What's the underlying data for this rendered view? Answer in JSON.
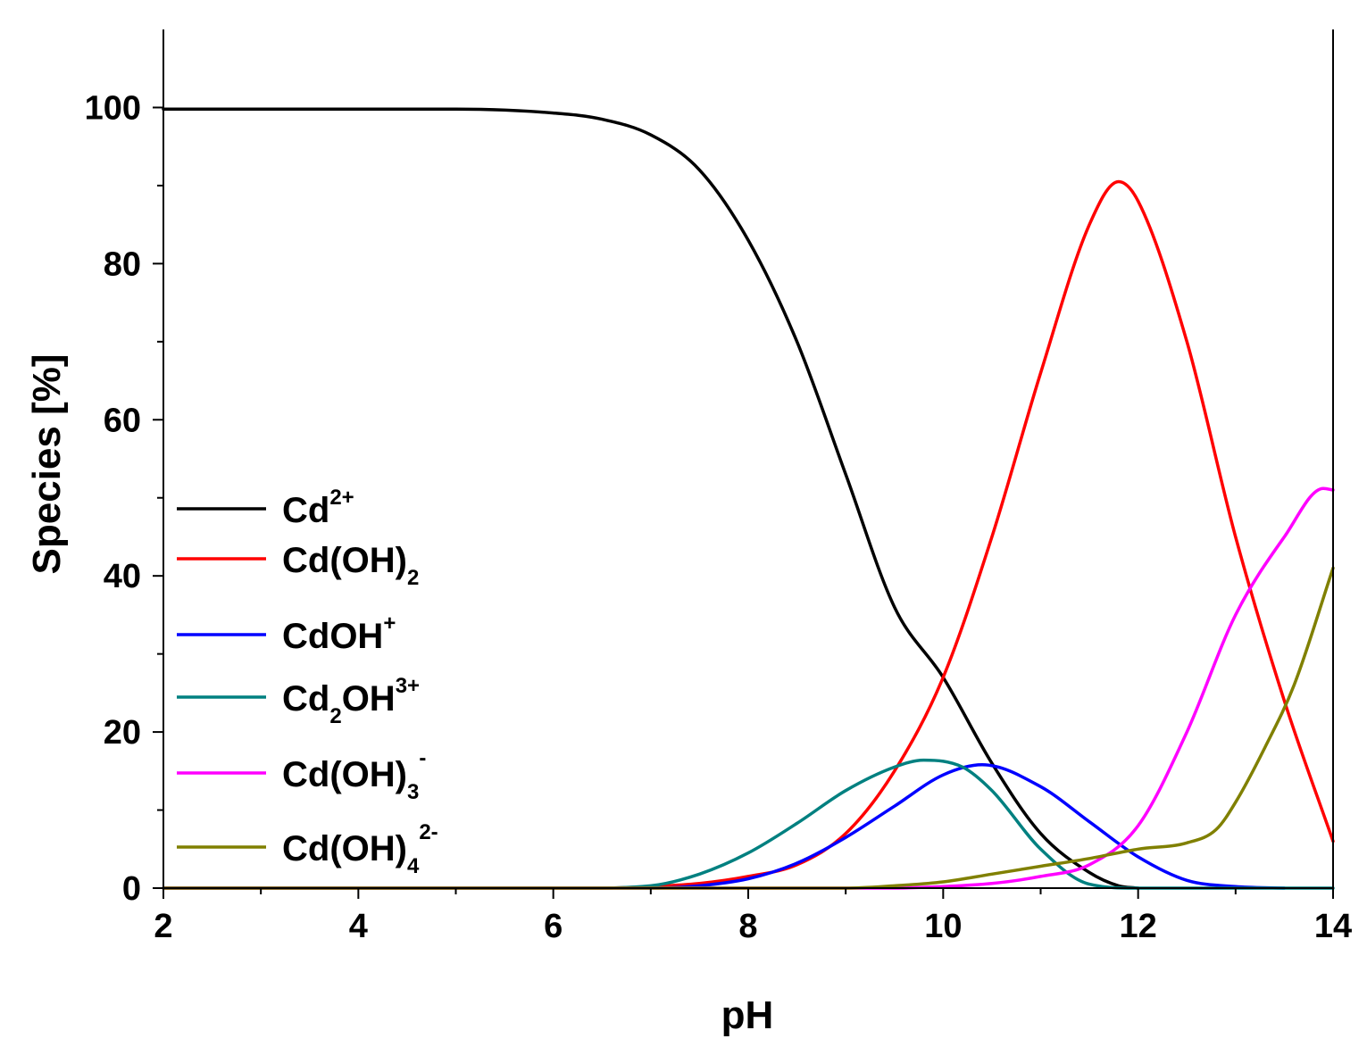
{
  "chart_data": {
    "type": "line",
    "title": "",
    "xlabel": "pH",
    "ylabel": "Species [%]",
    "xlim": [
      2,
      14
    ],
    "ylim": [
      0,
      110
    ],
    "xticks": [
      2,
      4,
      6,
      8,
      10,
      12,
      14
    ],
    "yticks": [
      0,
      20,
      40,
      60,
      80,
      100
    ],
    "xtick_labels": [
      "2",
      "4",
      "6",
      "8",
      "10",
      "12",
      "14"
    ],
    "ytick_labels": [
      "0",
      "20",
      "40",
      "60",
      "80",
      "100"
    ],
    "grid": false,
    "legend_position": "left-middle",
    "series": [
      {
        "name": "Cd2+",
        "label_main": "Cd",
        "label_sup": "2+",
        "label_sub": "",
        "label_tail": "",
        "label_tail_sup": "",
        "color": "#000000",
        "x": [
          2,
          5,
          6,
          6.5,
          7,
          7.5,
          8,
          8.5,
          9,
          9.5,
          10,
          10.5,
          11,
          11.5,
          11.8,
          12
        ],
        "y": [
          99.8,
          99.8,
          99.3,
          98.5,
          96.5,
          92,
          83,
          70,
          53,
          36,
          27,
          16,
          7,
          2,
          0.3,
          0
        ]
      },
      {
        "name": "Cd(OH)2",
        "label_main": "Cd(OH)",
        "label_sup": "",
        "label_sub": "2",
        "label_tail": "",
        "label_tail_sup": "",
        "color": "#ff0000",
        "x": [
          2,
          6.5,
          7,
          7.5,
          8,
          8.5,
          9,
          9.5,
          10,
          10.5,
          11,
          11.5,
          11.8,
          12,
          12.5,
          13,
          13.5,
          14
        ],
        "y": [
          0,
          0,
          0.2,
          0.6,
          1.5,
          3,
          7,
          15,
          27,
          45,
          66,
          85,
          90.5,
          88,
          70,
          45,
          24,
          6
        ]
      },
      {
        "name": "CdOH+",
        "label_main": "CdOH",
        "label_sup": "+",
        "label_sub": "",
        "label_tail": "",
        "label_tail_sup": "",
        "color": "#0000ff",
        "x": [
          2,
          7,
          7.5,
          8,
          8.5,
          9,
          9.5,
          10,
          10.4,
          11,
          11.5,
          12,
          12.5,
          13,
          13.5
        ],
        "y": [
          0,
          0,
          0.3,
          1.2,
          3.2,
          6.5,
          10.5,
          14.5,
          15.8,
          13,
          8.5,
          4,
          1,
          0.2,
          0
        ]
      },
      {
        "name": "Cd2OH3+",
        "label_main": "Cd",
        "label_sup": "",
        "label_sub": "2",
        "label_tail": "OH",
        "label_tail_sup": "3+",
        "color": "#008080",
        "x": [
          2,
          6.3,
          7,
          7.5,
          8,
          8.5,
          9,
          9.5,
          9.8,
          10.2,
          10.5,
          11,
          11.5,
          12,
          14
        ],
        "y": [
          0,
          0,
          0.3,
          1.8,
          4.5,
          8.3,
          12.5,
          15.5,
          16.4,
          15.5,
          12.5,
          5,
          0.5,
          0,
          0
        ]
      },
      {
        "name": "Cd(OH)3-",
        "label_main": "Cd(OH)",
        "label_sup": "-",
        "label_sub": "3",
        "label_tail": "",
        "label_tail_sup": "",
        "color": "#ff00ff",
        "x": [
          2,
          9.5,
          10,
          10.5,
          11,
          11.5,
          12,
          12.5,
          13,
          13.5,
          13.9,
          14
        ],
        "y": [
          0,
          0,
          0.2,
          0.6,
          1.5,
          3,
          8,
          20,
          35,
          45,
          51.2,
          51
        ]
      },
      {
        "name": "Cd(OH)4 2-",
        "label_main": "Cd(OH)",
        "label_sup": "2-",
        "label_sub": "4",
        "label_tail": "",
        "label_tail_sup": "",
        "color": "#808000",
        "x": [
          2,
          9,
          9.5,
          10,
          10.5,
          11,
          11.5,
          12,
          12.5,
          12.8,
          13,
          13.3,
          13.6,
          14
        ],
        "y": [
          0,
          0,
          0.3,
          0.8,
          1.8,
          2.8,
          3.8,
          5,
          5.8,
          7.5,
          11,
          18,
          26,
          41
        ]
      }
    ]
  }
}
